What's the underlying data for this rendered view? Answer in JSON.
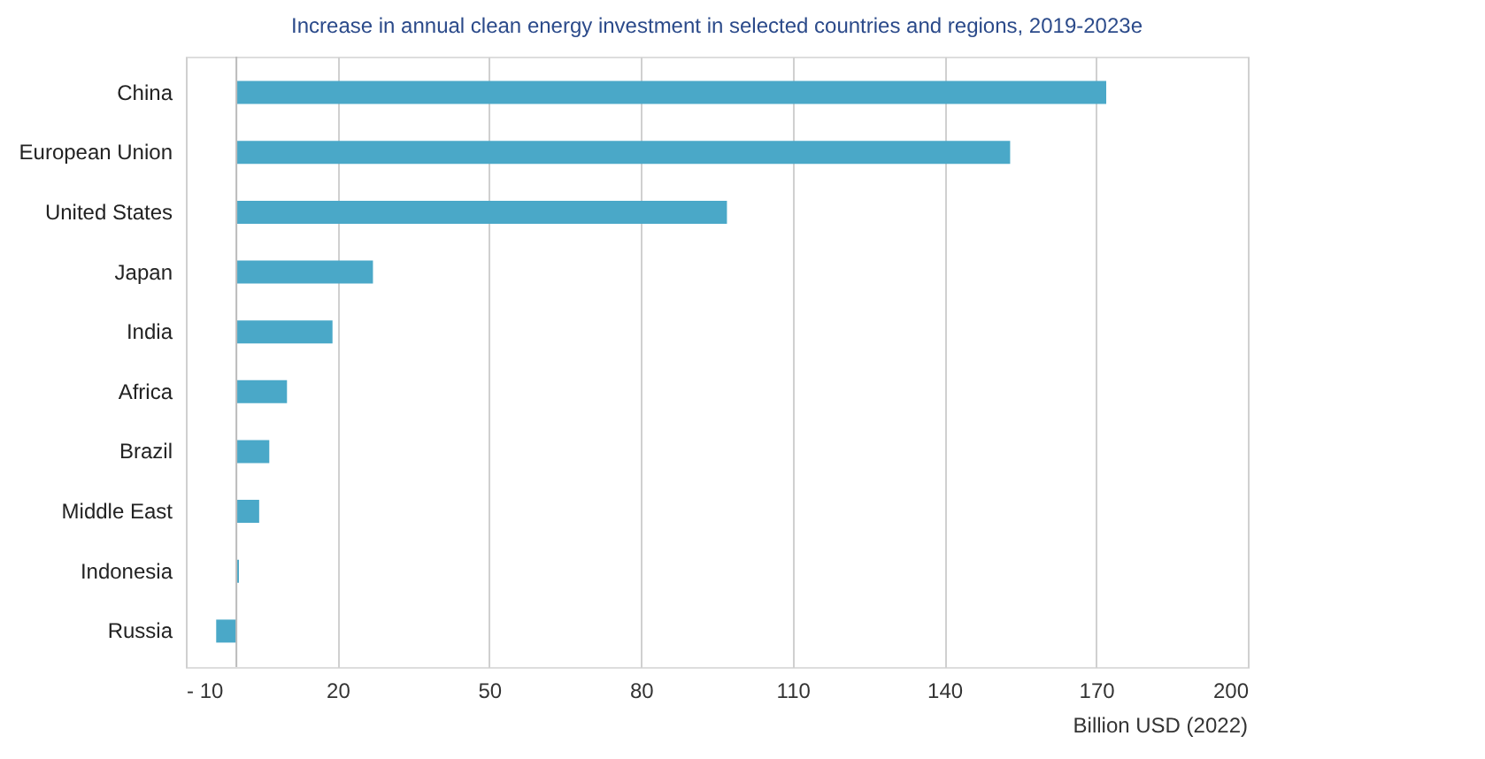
{
  "chart_data": {
    "type": "bar",
    "orientation": "horizontal",
    "title": "Increase in annual clean energy investment in selected countries and regions, 2019-2023e",
    "categories": [
      "China",
      "European Union",
      "United States",
      "Japan",
      "India",
      "Africa",
      "Brazil",
      "Middle East",
      "Indonesia",
      "Russia"
    ],
    "values": [
      172,
      153,
      97,
      27,
      19,
      10,
      6.5,
      4.5,
      0.5,
      -4
    ],
    "color": "#4aa8c8",
    "xlim": [
      -10,
      200
    ],
    "xticks": [
      {
        "value": -10,
        "label": "- 10"
      },
      20,
      50,
      80,
      110,
      140,
      170,
      200
    ],
    "xlabel": "Billion USD (2022)",
    "grid": "x"
  }
}
